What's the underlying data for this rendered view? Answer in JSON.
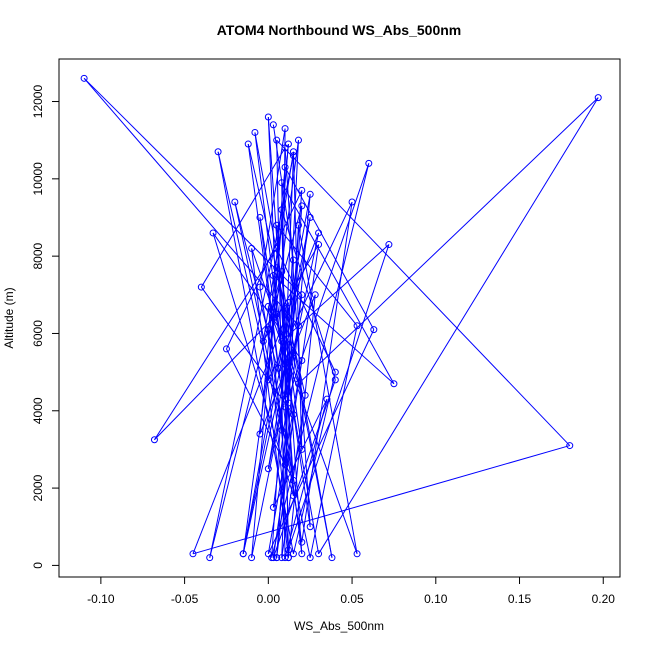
{
  "chart_data": {
    "type": "line",
    "title": "ATOM4 Northbound WS_Abs_500nm",
    "xlabel": "WS_Abs_500nm",
    "ylabel": "Altitude (m)",
    "xlim": [
      -0.125,
      0.21
    ],
    "ylim": [
      -300,
      13100
    ],
    "x_ticks": [
      -0.1,
      -0.05,
      0.0,
      0.05,
      0.1,
      0.15,
      0.2
    ],
    "x_tick_labels": [
      "-0.10",
      "-0.05",
      "0.00",
      "0.05",
      "0.10",
      "0.15",
      "0.20"
    ],
    "y_ticks": [
      0,
      2000,
      4000,
      6000,
      8000,
      10000,
      12000
    ],
    "y_tick_labels": [
      "0",
      "2000",
      "4000",
      "6000",
      "8000",
      "10000",
      "12000"
    ],
    "grid": false,
    "series_color": "#0000ff",
    "points": [
      [
        0.005,
        200
      ],
      [
        0.012,
        4500
      ],
      [
        -0.005,
        9000
      ],
      [
        0.02,
        300
      ],
      [
        0.008,
        7600
      ],
      [
        -0.035,
        200
      ],
      [
        0.015,
        10600
      ],
      [
        0.01,
        5200
      ],
      [
        -0.015,
        300
      ],
      [
        0.025,
        9000
      ],
      [
        0.0,
        2500
      ],
      [
        0.018,
        6200
      ],
      [
        -0.11,
        12600
      ],
      [
        0.02,
        7000
      ],
      [
        0.003,
        1500
      ],
      [
        0.035,
        4300
      ],
      [
        0.01,
        200
      ],
      [
        0.005,
        11000
      ],
      [
        0.18,
        3100
      ],
      [
        -0.045,
        300
      ],
      [
        0.03,
        8600
      ],
      [
        0.015,
        5500
      ],
      [
        -0.01,
        200
      ],
      [
        0.012,
        10900
      ],
      [
        0.0,
        4800
      ],
      [
        0.05,
        9400
      ],
      [
        0.02,
        600
      ],
      [
        -0.005,
        7200
      ],
      [
        0.01,
        11300
      ],
      [
        0.008,
        3500
      ],
      [
        -0.03,
        10700
      ],
      [
        0.015,
        300
      ],
      [
        0.04,
        5000
      ],
      [
        0.005,
        8200
      ],
      [
        -0.068,
        3250
      ],
      [
        0.012,
        6800
      ],
      [
        0.002,
        200
      ],
      [
        0.06,
        10400
      ],
      [
        0.01,
        4100
      ],
      [
        0.02,
        9700
      ],
      [
        -0.025,
        5600
      ],
      [
        0.015,
        2200
      ],
      [
        0.0,
        11600
      ],
      [
        0.005,
        6500
      ],
      [
        0.03,
        300
      ],
      [
        0.197,
        12100
      ],
      [
        0.018,
        4700
      ],
      [
        -0.01,
        8200
      ],
      [
        0.012,
        200
      ],
      [
        0.008,
        9900
      ],
      [
        0.075,
        4700
      ],
      [
        0.003,
        7500
      ],
      [
        0.025,
        1000
      ],
      [
        0.01,
        10800
      ],
      [
        -0.04,
        7200
      ],
      [
        0.015,
        3900
      ],
      [
        0.005,
        200
      ],
      [
        0.02,
        9300
      ],
      [
        0.0,
        6100
      ],
      [
        0.012,
        400
      ],
      [
        0.072,
        8300
      ],
      [
        0.008,
        5800
      ],
      [
        -0.015,
        300
      ],
      [
        0.018,
        11000
      ],
      [
        0.01,
        4300
      ],
      [
        -0.02,
        9400
      ],
      [
        0.025,
        200
      ],
      [
        0.053,
        6200
      ],
      [
        0.005,
        8800
      ],
      [
        0.015,
        1800
      ],
      [
        -0.033,
        8600
      ],
      [
        0.02,
        5300
      ],
      [
        0.0,
        300
      ],
      [
        0.063,
        6100
      ],
      [
        0.01,
        10300
      ],
      [
        -0.005,
        3400
      ],
      [
        0.028,
        7000
      ],
      [
        0.012,
        200
      ],
      [
        0.008,
        9200
      ],
      [
        0.04,
        4800
      ],
      [
        0.003,
        200
      ],
      [
        0.03,
        8300
      ],
      [
        -0.003,
        5800
      ],
      [
        0.015,
        10700
      ],
      [
        0.02,
        3000
      ],
      [
        0.005,
        7700
      ],
      [
        0.038,
        200
      ],
      [
        -0.008,
        11200
      ],
      [
        0.012,
        4200
      ],
      [
        0.018,
        8800
      ],
      [
        0.053,
        300
      ],
      [
        0.0,
        6700
      ],
      [
        0.01,
        2600
      ],
      [
        0.025,
        9600
      ],
      [
        0.006,
        5100
      ],
      [
        -0.012,
        10900
      ],
      [
        0.022,
        4400
      ],
      [
        0.008,
        200
      ],
      [
        0.015,
        7900
      ],
      [
        0.003,
        11400
      ]
    ]
  }
}
